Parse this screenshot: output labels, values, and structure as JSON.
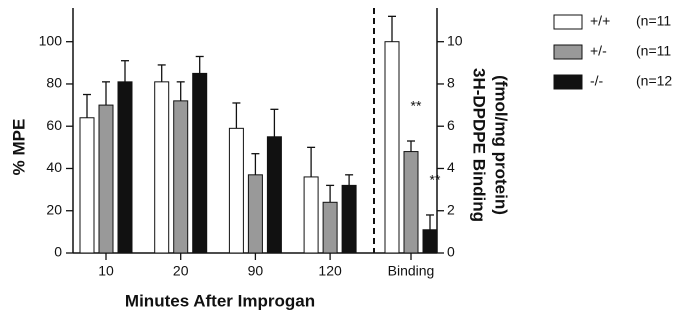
{
  "chart_data": [
    {
      "type": "bar",
      "categories": [
        "10",
        "20",
        "90",
        "120"
      ],
      "series": [
        {
          "name": "+/+",
          "n_label": "(n=11",
          "color": "#ffffff",
          "values": [
            64,
            81,
            59,
            36
          ],
          "errors": [
            11,
            8,
            12,
            14
          ]
        },
        {
          "name": "+/-",
          "n_label": "(n=11",
          "color": "#999999",
          "values": [
            70,
            72,
            37,
            24
          ],
          "errors": [
            11,
            9,
            10,
            8
          ]
        },
        {
          "name": "-/-",
          "n_label": "(n=12",
          "color": "#111111",
          "values": [
            81,
            85,
            55,
            32
          ],
          "errors": [
            10,
            8,
            13,
            5
          ]
        }
      ],
      "ylim": [
        0,
        115
      ],
      "yticks": [
        0,
        20,
        40,
        60,
        80,
        100
      ],
      "ylabel": "% MPE",
      "xlabel": "Minutes After Improgan"
    },
    {
      "type": "bar",
      "categories": [
        "Binding"
      ],
      "series": [
        {
          "color": "#ffffff",
          "values": [
            10
          ],
          "errors": [
            1.2
          ]
        },
        {
          "color": "#999999",
          "values": [
            4.8
          ],
          "errors": [
            0.5
          ]
        },
        {
          "color": "#111111",
          "values": [
            1.1
          ],
          "errors": [
            0.7
          ]
        }
      ],
      "y2lim": [
        0,
        11.5
      ],
      "y2ticks": [
        0,
        2,
        4,
        6,
        8,
        10
      ],
      "y2label": [
        "3H-DPDPE Binding",
        "(fmol/mg protein)"
      ],
      "annotations": [
        {
          "series": 1,
          "text": "**"
        },
        {
          "series": 2,
          "text": "**"
        }
      ]
    }
  ]
}
